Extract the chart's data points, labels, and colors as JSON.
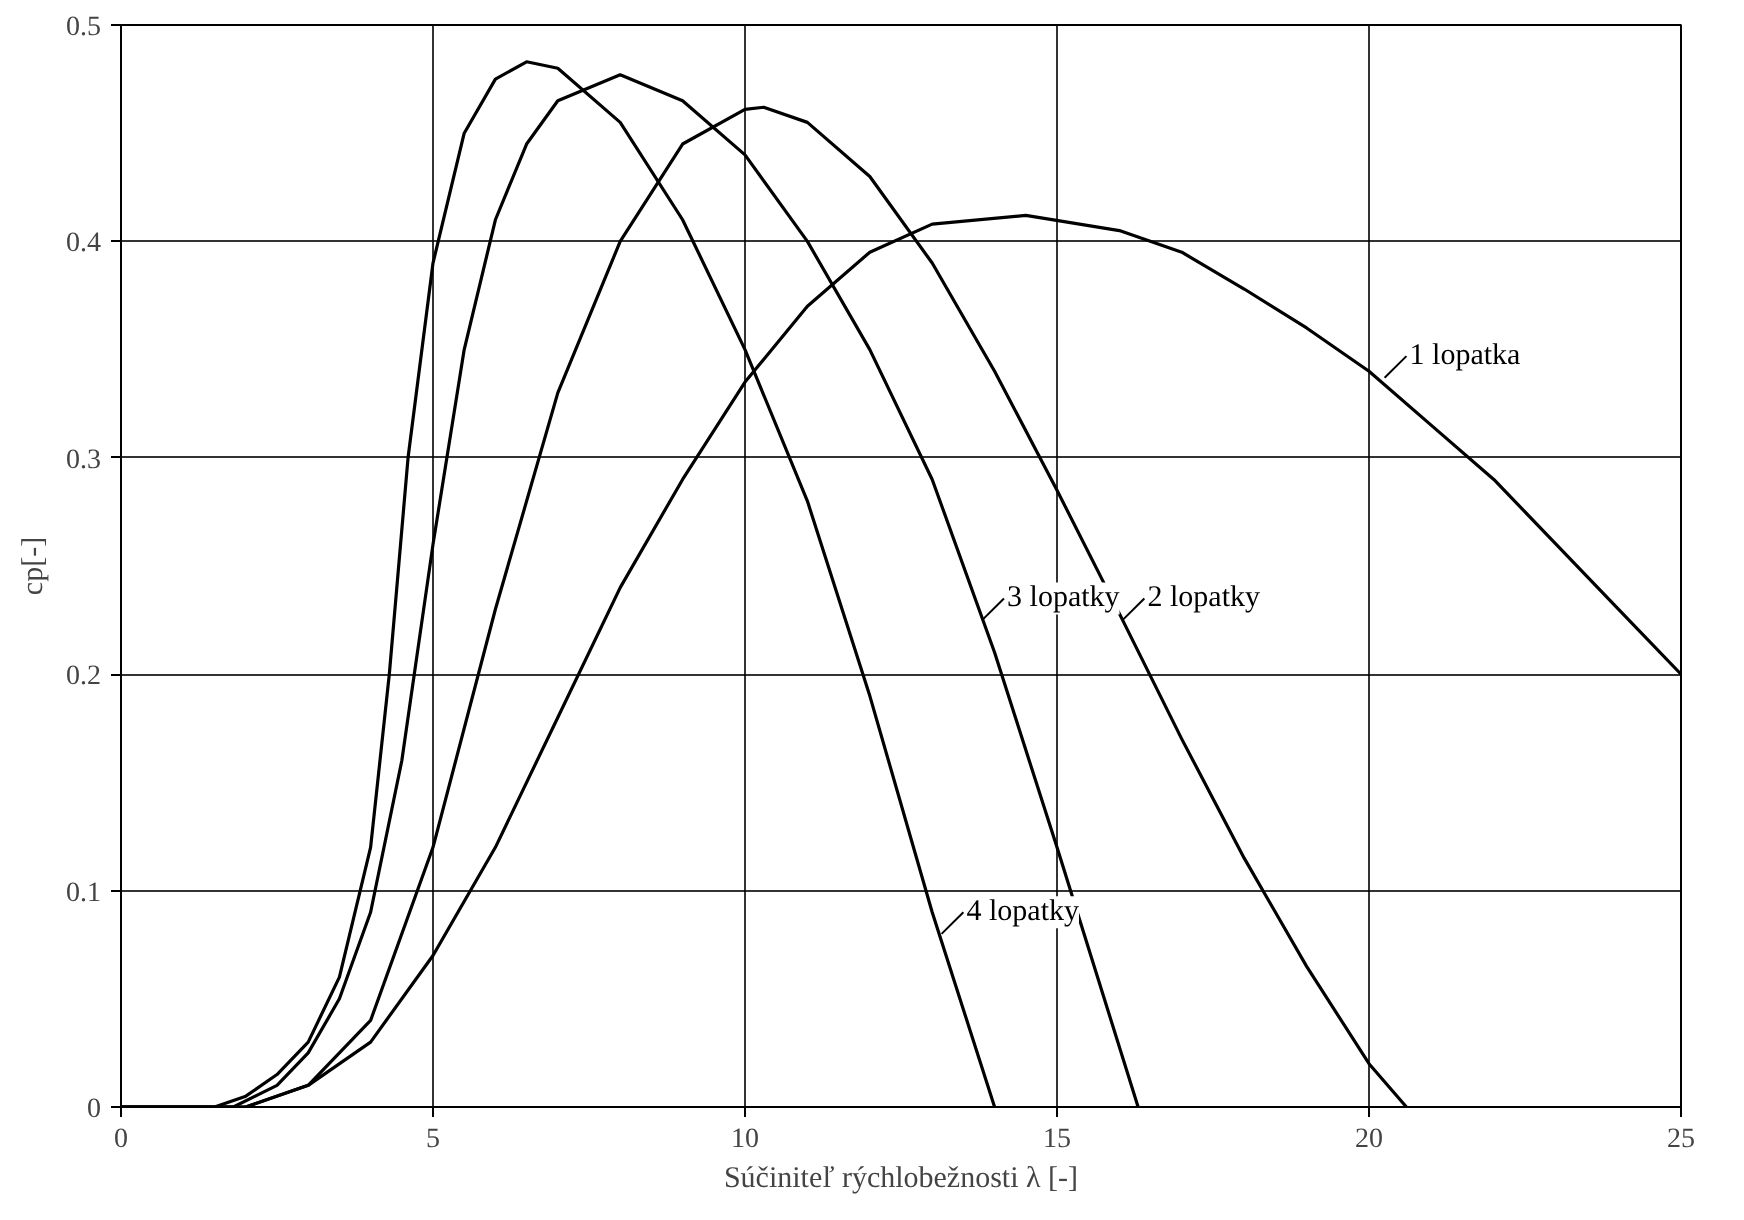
{
  "chart_data": {
    "type": "line",
    "xlabel": "Súčiniteľ rýchlobežnosti λ [-]",
    "ylabel": "cp[-]",
    "xlim": [
      0,
      25
    ],
    "ylim": [
      0,
      0.5
    ],
    "xticks": [
      0,
      5,
      10,
      15,
      20,
      25
    ],
    "yticks": [
      0,
      0.1,
      0.2,
      0.3,
      0.4,
      0.5
    ],
    "grid": true,
    "marker": "none",
    "line_style": "solid",
    "series": [
      {
        "color": "#000000",
        "x": [
          0,
          2,
          3,
          4,
          5,
          6,
          7,
          8,
          9,
          10,
          11,
          12,
          13,
          14.5,
          16,
          17,
          18,
          19,
          20,
          21,
          22,
          23,
          24,
          25
        ],
        "values": [
          0,
          0,
          0.01,
          0.03,
          0.07,
          0.12,
          0.18,
          0.24,
          0.29,
          0.335,
          0.37,
          0.395,
          0.408,
          0.412,
          0.405,
          0.395,
          0.378,
          0.36,
          0.34,
          0.315,
          0.29,
          0.26,
          0.23,
          0.2
        ]
      },
      {
        "color": "#000000",
        "x": [
          0,
          2,
          3,
          4,
          5,
          6,
          7,
          8,
          9,
          10,
          10.3,
          11,
          12,
          13,
          14,
          15,
          16,
          17,
          18,
          19,
          20,
          20.6
        ],
        "values": [
          0,
          0,
          0.01,
          0.04,
          0.12,
          0.23,
          0.33,
          0.4,
          0.445,
          0.461,
          0.462,
          0.455,
          0.43,
          0.39,
          0.34,
          0.285,
          0.228,
          0.17,
          0.115,
          0.065,
          0.02,
          0
        ]
      },
      {
        "color": "#000000",
        "x": [
          0,
          1.8,
          2.5,
          3,
          3.5,
          4,
          4.5,
          5,
          5.5,
          6,
          6.5,
          7,
          8,
          9,
          10,
          11,
          12,
          13,
          14,
          15,
          16.3
        ],
        "values": [
          0,
          0,
          0.01,
          0.025,
          0.05,
          0.09,
          0.16,
          0.26,
          0.35,
          0.41,
          0.445,
          0.465,
          0.477,
          0.465,
          0.44,
          0.4,
          0.35,
          0.29,
          0.21,
          0.12,
          0
        ]
      },
      {
        "color": "#000000",
        "x": [
          0,
          1.5,
          2,
          2.5,
          3,
          3.5,
          4,
          4.3,
          4.6,
          5,
          5.5,
          6,
          6.5,
          7,
          8,
          9,
          10,
          11,
          12,
          13,
          14
        ],
        "values": [
          0,
          0,
          0.005,
          0.015,
          0.03,
          0.06,
          0.12,
          0.2,
          0.3,
          0.39,
          0.45,
          0.475,
          0.483,
          0.48,
          0.455,
          0.41,
          0.35,
          0.28,
          0.19,
          0.09,
          0
        ]
      }
    ],
    "annotations": [
      {
        "text": "1 lopatka",
        "x": 20.25,
        "y": 0.337
      },
      {
        "text": "2 lopatky",
        "x": 16.05,
        "y": 0.225
      },
      {
        "text": "3 lopatky",
        "x": 13.8,
        "y": 0.225
      },
      {
        "text": "4 lopatky",
        "x": 13.15,
        "y": 0.08
      }
    ]
  }
}
